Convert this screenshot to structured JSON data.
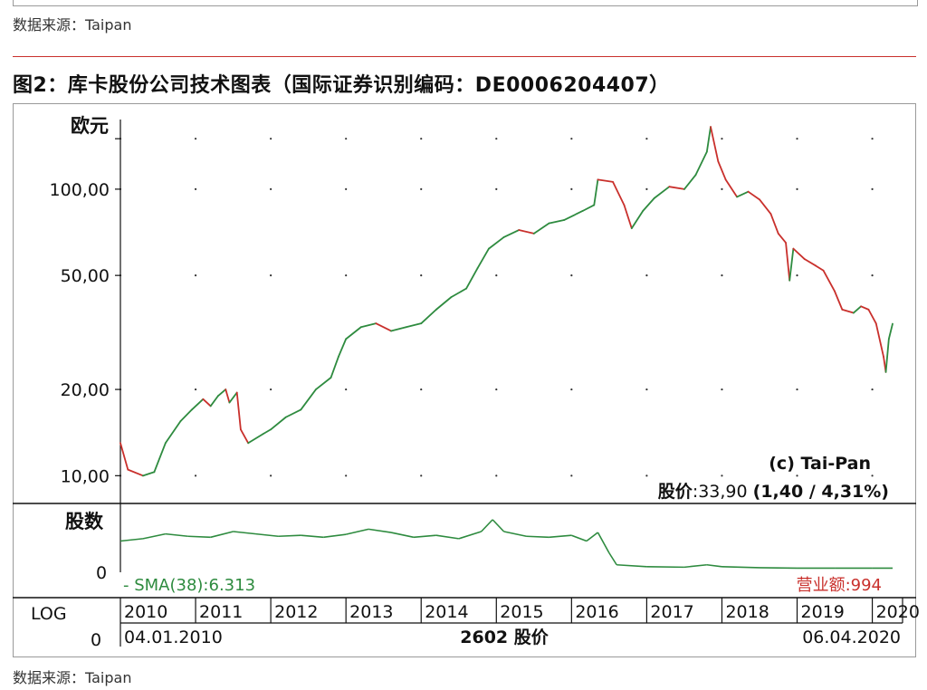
{
  "source_label_top": "数据来源：Taipan",
  "source_label_bottom": "数据来源：Taipan",
  "figure_title": "图2：库卡股份公司技术图表（国际证券识别编码：DE0006204407）",
  "colors": {
    "up": "#2e8b3f",
    "down": "#c9302c",
    "axis": "#111111",
    "sma": "#2e8b3f",
    "rule": "#c9302c"
  },
  "chart_data": {
    "type": "line",
    "price_unit_label": "欧元",
    "y_scale": "log",
    "ylim": [
      8,
      175
    ],
    "y_ticks": [
      {
        "value": 10,
        "label": "10,00"
      },
      {
        "value": 20,
        "label": "20,00"
      },
      {
        "value": 50,
        "label": "50,00"
      },
      {
        "value": 100,
        "label": "100,00"
      }
    ],
    "y_minor_tick_value": 150,
    "grid": true,
    "copyright": "(c) Tai-Pan",
    "last_price_label": "股价",
    "last_price_value": ":33,90",
    "last_price_change": "(1,40 / 4,31%)",
    "x_range": [
      2010.0,
      2020.27
    ],
    "x_years": [
      "2010",
      "2011",
      "2012",
      "2013",
      "2014",
      "2015",
      "2016",
      "2017",
      "2018",
      "2019",
      "2020"
    ],
    "date_start": "04.01.2010",
    "date_end": "06.04.2020",
    "center_label": "2602 股价",
    "scale_label": "LOG",
    "scale_value": "0",
    "price_series": [
      [
        2010.0,
        13.0
      ],
      [
        2010.1,
        10.5
      ],
      [
        2010.3,
        10.0
      ],
      [
        2010.45,
        10.3
      ],
      [
        2010.6,
        13.0
      ],
      [
        2010.8,
        15.5
      ],
      [
        2010.95,
        17.0
      ],
      [
        2011.1,
        18.5
      ],
      [
        2011.2,
        17.5
      ],
      [
        2011.3,
        19.0
      ],
      [
        2011.4,
        20.0
      ],
      [
        2011.45,
        18.0
      ],
      [
        2011.55,
        19.5
      ],
      [
        2011.6,
        14.5
      ],
      [
        2011.7,
        13.0
      ],
      [
        2011.9,
        14.0
      ],
      [
        2012.0,
        14.5
      ],
      [
        2012.2,
        16.0
      ],
      [
        2012.4,
        17.0
      ],
      [
        2012.6,
        20.0
      ],
      [
        2012.8,
        22.0
      ],
      [
        2012.9,
        26.0
      ],
      [
        2013.0,
        30.0
      ],
      [
        2013.2,
        33.0
      ],
      [
        2013.4,
        34.0
      ],
      [
        2013.6,
        32.0
      ],
      [
        2013.8,
        33.0
      ],
      [
        2014.0,
        34.0
      ],
      [
        2014.2,
        38.0
      ],
      [
        2014.4,
        42.0
      ],
      [
        2014.6,
        45.0
      ],
      [
        2014.75,
        53.0
      ],
      [
        2014.9,
        62.0
      ],
      [
        2015.1,
        68.0
      ],
      [
        2015.3,
        72.0
      ],
      [
        2015.5,
        70.0
      ],
      [
        2015.7,
        76.0
      ],
      [
        2015.9,
        78.0
      ],
      [
        2016.15,
        84.0
      ],
      [
        2016.3,
        88.0
      ],
      [
        2016.35,
        108.0
      ],
      [
        2016.55,
        106.0
      ],
      [
        2016.7,
        88.0
      ],
      [
        2016.8,
        73.0
      ],
      [
        2016.95,
        84.0
      ],
      [
        2017.1,
        93.0
      ],
      [
        2017.3,
        102.0
      ],
      [
        2017.5,
        100.0
      ],
      [
        2017.65,
        112.0
      ],
      [
        2017.8,
        135.0
      ],
      [
        2017.85,
        165.0
      ],
      [
        2017.95,
        125.0
      ],
      [
        2018.05,
        108.0
      ],
      [
        2018.2,
        94.0
      ],
      [
        2018.35,
        98.0
      ],
      [
        2018.5,
        92.0
      ],
      [
        2018.65,
        82.0
      ],
      [
        2018.75,
        70.0
      ],
      [
        2018.85,
        65.0
      ],
      [
        2018.9,
        48.0
      ],
      [
        2018.95,
        62.0
      ],
      [
        2019.1,
        57.0
      ],
      [
        2019.25,
        54.0
      ],
      [
        2019.35,
        52.0
      ],
      [
        2019.5,
        44.0
      ],
      [
        2019.6,
        38.0
      ],
      [
        2019.75,
        37.0
      ],
      [
        2019.85,
        39.0
      ],
      [
        2019.95,
        38.0
      ],
      [
        2020.05,
        34.0
      ],
      [
        2020.15,
        26.0
      ],
      [
        2020.18,
        23.0
      ],
      [
        2020.22,
        30.0
      ],
      [
        2020.27,
        33.9
      ]
    ],
    "volume_panel": {
      "label": "股数",
      "zero_label": "0",
      "sma_label": "- SMA(38):6.313",
      "turnover_label": "营业额:994",
      "sma_series": [
        [
          2010.0,
          6.0
        ],
        [
          2010.3,
          6.5
        ],
        [
          2010.6,
          7.5
        ],
        [
          2010.9,
          7.0
        ],
        [
          2011.2,
          6.8
        ],
        [
          2011.5,
          8.0
        ],
        [
          2011.8,
          7.5
        ],
        [
          2012.1,
          7.0
        ],
        [
          2012.4,
          7.2
        ],
        [
          2012.7,
          6.8
        ],
        [
          2013.0,
          7.4
        ],
        [
          2013.3,
          8.5
        ],
        [
          2013.6,
          7.8
        ],
        [
          2013.9,
          6.8
        ],
        [
          2014.2,
          7.2
        ],
        [
          2014.5,
          6.5
        ],
        [
          2014.8,
          8.0
        ],
        [
          2014.95,
          10.5
        ],
        [
          2015.1,
          8.0
        ],
        [
          2015.4,
          7.0
        ],
        [
          2015.7,
          6.8
        ],
        [
          2016.0,
          7.2
        ],
        [
          2016.2,
          6.0
        ],
        [
          2016.35,
          7.8
        ],
        [
          2016.5,
          3.5
        ],
        [
          2016.6,
          1.0
        ],
        [
          2017.0,
          0.6
        ],
        [
          2017.5,
          0.5
        ],
        [
          2017.8,
          1.0
        ],
        [
          2018.0,
          0.6
        ],
        [
          2018.5,
          0.4
        ],
        [
          2019.0,
          0.3
        ],
        [
          2019.5,
          0.3
        ],
        [
          2020.0,
          0.3
        ],
        [
          2020.27,
          0.3
        ]
      ]
    }
  }
}
